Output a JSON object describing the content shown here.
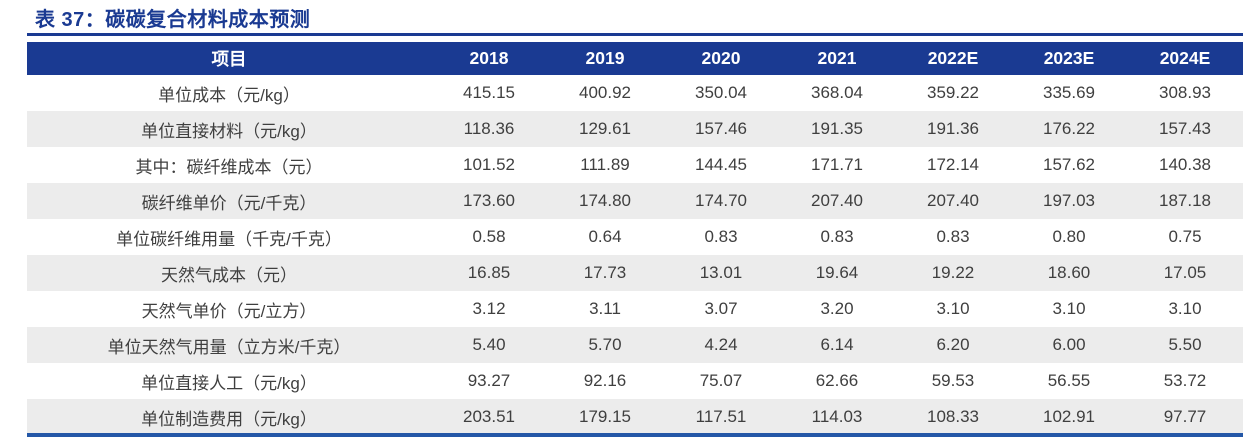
{
  "title": "表 37：碳碳复合材料成本预测",
  "colors": {
    "accent_navy": "#1A3A92",
    "header_text": "#FFFFFF",
    "row_stripe": "#ECECEC",
    "cell_text": "#3F3F3F",
    "bottom_rule": "#2457A7"
  },
  "table": {
    "columns": [
      "项目",
      "2018",
      "2019",
      "2020",
      "2021",
      "2022E",
      "2023E",
      "2024E"
    ],
    "rows": [
      {
        "label": "单位成本（元/kg）",
        "values": [
          "415.15",
          "400.92",
          "350.04",
          "368.04",
          "359.22",
          "335.69",
          "308.93"
        ]
      },
      {
        "label": "单位直接材料（元/kg）",
        "values": [
          "118.36",
          "129.61",
          "157.46",
          "191.35",
          "191.36",
          "176.22",
          "157.43"
        ]
      },
      {
        "label": "其中：碳纤维成本（元）",
        "values": [
          "101.52",
          "111.89",
          "144.45",
          "171.71",
          "172.14",
          "157.62",
          "140.38"
        ]
      },
      {
        "label": "碳纤维单价（元/千克）",
        "values": [
          "173.60",
          "174.80",
          "174.70",
          "207.40",
          "207.40",
          "197.03",
          "187.18"
        ]
      },
      {
        "label": "单位碳纤维用量（千克/千克）",
        "values": [
          "0.58",
          "0.64",
          "0.83",
          "0.83",
          "0.83",
          "0.80",
          "0.75"
        ]
      },
      {
        "label": "天然气成本（元）",
        "values": [
          "16.85",
          "17.73",
          "13.01",
          "19.64",
          "19.22",
          "18.60",
          "17.05"
        ]
      },
      {
        "label": "天然气单价（元/立方）",
        "values": [
          "3.12",
          "3.11",
          "3.07",
          "3.20",
          "3.10",
          "3.10",
          "3.10"
        ]
      },
      {
        "label": "单位天然气用量（立方米/千克）",
        "values": [
          "5.40",
          "5.70",
          "4.24",
          "6.14",
          "6.20",
          "6.00",
          "5.50"
        ]
      },
      {
        "label": "单位直接人工（元/kg）",
        "values": [
          "93.27",
          "92.16",
          "75.07",
          "62.66",
          "59.53",
          "56.55",
          "53.72"
        ]
      },
      {
        "label": "单位制造费用（元/kg）",
        "values": [
          "203.51",
          "179.15",
          "117.51",
          "114.03",
          "108.33",
          "102.91",
          "97.77"
        ]
      }
    ]
  }
}
